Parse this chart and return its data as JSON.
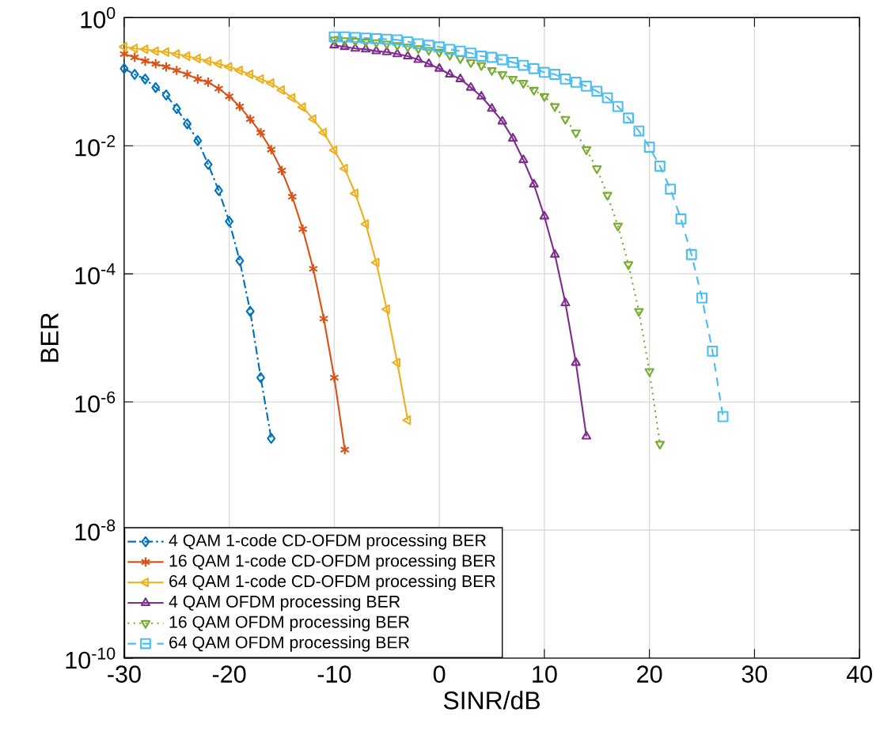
{
  "chart_data": {
    "type": "line",
    "xlabel": "SINR/dB",
    "ylabel": "BER",
    "log": "y",
    "grid": true,
    "legend": "bottom left",
    "xlim": [
      -30,
      40
    ],
    "xticks": [
      -30,
      -20,
      -10,
      0,
      10,
      20,
      30,
      40
    ],
    "ylim": [
      1e-10,
      1
    ],
    "yticks": [
      {
        "value": 1e-10,
        "label": "10$^{-10}$"
      },
      {
        "value": 1e-08,
        "label": "10$^{-8}$"
      },
      {
        "value": 1e-06,
        "label": "10$^{-6}$"
      },
      {
        "value": 0.0001,
        "label": "10$^{-4}$"
      },
      {
        "value": 0.01,
        "label": "10$^{-2}$"
      },
      {
        "value": 1,
        "label": "10$^{0}$"
      }
    ],
    "series": [
      {
        "name": "4 QAM 1-code CD-OFDM processing BER",
        "color": "#0072bd",
        "marker": "diamond",
        "line_style": "dashdot",
        "x": [
          -30,
          -29,
          -28,
          -27,
          -26,
          -25,
          -24,
          -23,
          -22,
          -21,
          -20,
          -19,
          -18,
          -17,
          -16
        ],
        "values": [
          0.16,
          0.13,
          0.11,
          0.081,
          0.062,
          0.038,
          0.022,
          0.012,
          0.0051,
          0.002,
          0.00066,
          0.00016,
          2.6e-05,
          2.4e-06,
          2.7e-07
        ]
      },
      {
        "name": "16 QAM 1-code CD-OFDM processing BER",
        "color": "#d95319",
        "marker": "cross",
        "line_style": "solid",
        "x": [
          -30,
          -29,
          -28,
          -27,
          -26,
          -25,
          -24,
          -23,
          -22,
          -21,
          -20,
          -19,
          -18,
          -17,
          -16,
          -15,
          -14,
          -13,
          -12,
          -11,
          -10,
          -9
        ],
        "values": [
          0.27,
          0.24,
          0.21,
          0.19,
          0.17,
          0.15,
          0.13,
          0.11,
          0.098,
          0.078,
          0.059,
          0.041,
          0.026,
          0.016,
          0.0087,
          0.0041,
          0.0016,
          0.0005,
          0.00012,
          2e-05,
          2.4e-06,
          1.8e-07
        ]
      },
      {
        "name": "64 QAM 1-code CD-OFDM processing BER",
        "color": "#edb120",
        "marker": "triangle-left",
        "line_style": "solid",
        "x": [
          -30,
          -29,
          -28,
          -27,
          -26,
          -25,
          -24,
          -23,
          -22,
          -21,
          -20,
          -19,
          -18,
          -17,
          -16,
          -15,
          -14,
          -13,
          -12,
          -11,
          -10,
          -9,
          -8,
          -7,
          -6,
          -5,
          -4,
          -3
        ],
        "values": [
          0.35,
          0.33,
          0.32,
          0.3,
          0.29,
          0.27,
          0.25,
          0.23,
          0.21,
          0.19,
          0.17,
          0.15,
          0.13,
          0.11,
          0.095,
          0.074,
          0.056,
          0.04,
          0.026,
          0.016,
          0.0085,
          0.0044,
          0.0018,
          0.0006,
          0.00015,
          2.8e-05,
          4.1e-06,
          5.2e-07
        ]
      },
      {
        "name": "4 QAM OFDM processing BER",
        "color": "#7e2f8e",
        "marker": "triangle",
        "line_style": "solid",
        "x": [
          -10,
          -9,
          -8,
          -7,
          -6,
          -5,
          -4,
          -3,
          -2,
          -1,
          0,
          1,
          2,
          3,
          4,
          5,
          6,
          7,
          8,
          9,
          10,
          11,
          12,
          13,
          14
        ],
        "values": [
          0.37,
          0.35,
          0.33,
          0.32,
          0.3,
          0.29,
          0.27,
          0.25,
          0.22,
          0.19,
          0.16,
          0.13,
          0.11,
          0.081,
          0.059,
          0.038,
          0.024,
          0.013,
          0.006,
          0.0025,
          0.00079,
          0.0002,
          3.5e-05,
          4.1e-06,
          2.9e-07
        ]
      },
      {
        "name": "16 QAM OFDM processing BER",
        "color": "#77ac30",
        "marker": "triangle-down",
        "line_style": "dotted",
        "x": [
          -10,
          -9,
          -8,
          -7,
          -6,
          -5,
          -4,
          -3,
          -2,
          -1,
          0,
          1,
          2,
          3,
          4,
          5,
          6,
          7,
          8,
          9,
          10,
          11,
          12,
          13,
          14,
          15,
          16,
          17,
          18,
          19,
          20,
          21
        ],
        "values": [
          0.45,
          0.44,
          0.43,
          0.42,
          0.41,
          0.39,
          0.37,
          0.35,
          0.33,
          0.31,
          0.29,
          0.26,
          0.23,
          0.2,
          0.18,
          0.15,
          0.13,
          0.11,
          0.095,
          0.074,
          0.059,
          0.041,
          0.026,
          0.016,
          0.0087,
          0.0044,
          0.0017,
          0.00056,
          0.00014,
          2.6e-05,
          3e-06,
          2.2e-07
        ]
      },
      {
        "name": "64 QAM OFDM processing BER",
        "color": "#4dbeee",
        "marker": "square",
        "line_style": "dashed",
        "x": [
          -10,
          -9,
          -8,
          -7,
          -6,
          -5,
          -4,
          -3,
          -2,
          -1,
          0,
          1,
          2,
          3,
          4,
          5,
          6,
          7,
          8,
          9,
          10,
          11,
          12,
          13,
          14,
          15,
          16,
          17,
          18,
          19,
          20,
          21,
          22,
          23,
          24,
          25,
          26,
          27
        ],
        "values": [
          0.5,
          0.5,
          0.49,
          0.48,
          0.47,
          0.46,
          0.45,
          0.42,
          0.39,
          0.37,
          0.35,
          0.32,
          0.3,
          0.28,
          0.25,
          0.24,
          0.22,
          0.2,
          0.18,
          0.16,
          0.14,
          0.13,
          0.11,
          0.098,
          0.085,
          0.071,
          0.056,
          0.041,
          0.027,
          0.017,
          0.0095,
          0.0048,
          0.0021,
          0.00072,
          0.0002,
          4.2e-05,
          6.2e-06,
          5.9e-07
        ]
      }
    ]
  }
}
